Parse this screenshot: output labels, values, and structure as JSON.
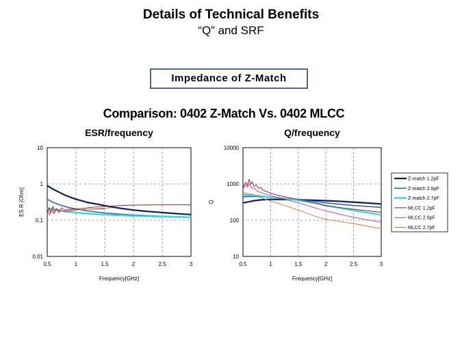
{
  "slide": {
    "title": "Details of Technical Benefits",
    "subtitle": "“Q” and SRF",
    "boxed_label": "Impedance  of Z-Match",
    "comparison": "Comparison: 0402 Z-Match Vs. 0402 MLCC"
  },
  "chart_data": [
    {
      "type": "line",
      "title": "ESR/frequency",
      "xlabel": "Frequency[GHz]",
      "ylabel": "ES R [Ohm]",
      "xscale": "linear",
      "yscale": "log",
      "xlim": [
        0.5,
        3
      ],
      "ylim": [
        0.01,
        10
      ],
      "xticks": [
        "0.5",
        "1",
        "1.5",
        "2",
        "2.5",
        "3"
      ],
      "yticks": [
        "10",
        "1",
        "0.1",
        "0.01"
      ],
      "grid": true,
      "series": [
        {
          "name": "Z-match 1.2pF",
          "color": "#0d1a5e",
          "width": 2.2,
          "x": [
            0.5,
            0.6,
            0.7,
            0.8,
            0.9,
            1.0,
            1.2,
            1.4,
            1.6,
            1.8,
            2.0,
            2.2,
            2.4,
            2.6,
            2.8,
            3.0
          ],
          "y": [
            0.9,
            0.72,
            0.6,
            0.5,
            0.43,
            0.38,
            0.31,
            0.27,
            0.235,
            0.21,
            0.19,
            0.177,
            0.167,
            0.158,
            0.15,
            0.143
          ]
        },
        {
          "name": "Z-match 2.0pF",
          "color": "#2e5fc8",
          "width": 1.6,
          "x": [
            0.5,
            0.6,
            0.7,
            0.8,
            0.9,
            1.0,
            1.2,
            1.5,
            1.8,
            2.0,
            2.5,
            3.0
          ],
          "y": [
            0.38,
            0.31,
            0.27,
            0.24,
            0.22,
            0.205,
            0.18,
            0.158,
            0.145,
            0.138,
            0.128,
            0.122
          ]
        },
        {
          "name": "Z-match 2.7pF",
          "color": "#33dcdc",
          "width": 2.4,
          "x": [
            0.5,
            0.6,
            0.7,
            0.8,
            0.9,
            1.0,
            1.2,
            1.5,
            1.8,
            2.0,
            2.5,
            3.0
          ],
          "y": [
            0.22,
            0.2,
            0.185,
            0.175,
            0.168,
            0.162,
            0.152,
            0.142,
            0.135,
            0.131,
            0.125,
            0.12
          ]
        },
        {
          "name": "MLCC 1.2pF",
          "color": "#a01010",
          "width": 0.9,
          "x": [
            0.5,
            0.53,
            0.56,
            0.6,
            0.63,
            0.66,
            0.7,
            0.75,
            0.8,
            0.85,
            0.9,
            1.0,
            1.1,
            1.2,
            1.4,
            1.6,
            1.8,
            2.0,
            2.5,
            3.0
          ],
          "y": [
            0.15,
            0.22,
            0.16,
            0.24,
            0.17,
            0.21,
            0.18,
            0.22,
            0.19,
            0.2,
            0.2,
            0.2,
            0.21,
            0.22,
            0.235,
            0.245,
            0.255,
            0.26,
            0.265,
            0.265
          ]
        },
        {
          "name": "MLCC 2.0pF",
          "color": "#c030c0",
          "width": 0.9,
          "x": [
            0.5,
            0.54,
            0.58,
            0.62,
            0.66,
            0.7,
            0.75,
            0.8,
            0.9,
            1.0,
            1.2,
            1.5
          ],
          "y": [
            0.2,
            0.14,
            0.21,
            0.15,
            0.2,
            0.16,
            0.19,
            0.17,
            0.18,
            0.19,
            0.2,
            0.205
          ]
        },
        {
          "name": "MLCC 2.7pF",
          "color": "#c87a20",
          "width": 0.9,
          "x": [
            0.5,
            0.55,
            0.6,
            0.65,
            0.7,
            0.8,
            0.9,
            1.0,
            1.2,
            1.4,
            1.6
          ],
          "y": [
            0.17,
            0.2,
            0.16,
            0.19,
            0.175,
            0.18,
            0.185,
            0.19,
            0.2,
            0.21,
            0.22
          ]
        }
      ]
    },
    {
      "type": "line",
      "title": "Q/frequency",
      "xlabel": "Frequency[GHz]",
      "ylabel": "Q",
      "xscale": "linear",
      "yscale": "log",
      "xlim": [
        0.5,
        3
      ],
      "ylim": [
        10,
        10000
      ],
      "xticks": [
        "0.5",
        "1",
        "1.5",
        "2",
        "2.5",
        "3"
      ],
      "yticks": [
        "10000",
        "1000",
        "100",
        "10"
      ],
      "grid": true,
      "legend": "right",
      "series": [
        {
          "name": "Z-match 1.2pF",
          "color": "#0d1a5e",
          "width": 2.2,
          "x": [
            0.5,
            0.6,
            0.7,
            0.8,
            0.9,
            1.0,
            1.2,
            1.5,
            1.8,
            2.0,
            2.2,
            2.5,
            2.8,
            3.0
          ],
          "y": [
            300,
            320,
            345,
            360,
            370,
            375,
            375,
            365,
            355,
            345,
            335,
            315,
            295,
            280
          ]
        },
        {
          "name": "Z-match 2.0pF",
          "color": "#2e5fc8",
          "width": 1.6,
          "x": [
            0.5,
            0.6,
            0.7,
            0.8,
            0.9,
            1.0,
            1.2,
            1.5,
            1.8,
            2.0,
            2.5,
            3.0
          ],
          "y": [
            440,
            450,
            450,
            445,
            440,
            430,
            410,
            370,
            330,
            300,
            255,
            225
          ]
        },
        {
          "name": "Z-match 2.7pF",
          "color": "#33dcdc",
          "width": 2.4,
          "x": [
            0.5,
            0.6,
            0.7,
            0.8,
            0.9,
            1.0,
            1.2,
            1.5,
            1.8,
            2.0,
            2.5,
            3.0
          ],
          "y": [
            500,
            490,
            480,
            465,
            450,
            435,
            405,
            350,
            295,
            255,
            185,
            140
          ]
        },
        {
          "name": "MLCC 1.2pF",
          "color": "#a01010",
          "width": 0.9,
          "x": [
            0.5,
            0.55,
            0.58,
            0.61,
            0.64,
            0.67,
            0.7,
            0.74,
            0.78,
            0.82,
            0.86,
            0.9,
            0.95,
            1.0,
            1.1,
            1.2,
            1.4,
            1.6,
            1.8,
            2.0,
            2.5,
            3.0
          ],
          "y": [
            800,
            1100,
            900,
            1350,
            1000,
            1150,
            850,
            950,
            750,
            800,
            680,
            640,
            600,
            560,
            500,
            460,
            400,
            350,
            300,
            250,
            200,
            165
          ]
        },
        {
          "name": "MLCC 2.0pF",
          "color": "#c030c0",
          "width": 0.9,
          "x": [
            0.5,
            0.54,
            0.58,
            0.62,
            0.66,
            0.7,
            0.75,
            0.8,
            0.9,
            1.0,
            1.2,
            1.5,
            1.8,
            2.0,
            2.5,
            3.0
          ],
          "y": [
            700,
            950,
            800,
            1000,
            750,
            780,
            650,
            600,
            530,
            480,
            400,
            300,
            220,
            180,
            120,
            88
          ]
        },
        {
          "name": "MLCC 2.7pF",
          "color": "#c87a20",
          "width": 0.9,
          "x": [
            0.5,
            0.55,
            0.6,
            0.65,
            0.7,
            0.8,
            0.9,
            1.0,
            1.2,
            1.5,
            1.8,
            2.0,
            2.5,
            3.0
          ],
          "y": [
            500,
            580,
            520,
            540,
            490,
            430,
            380,
            340,
            270,
            190,
            130,
            105,
            80,
            58
          ]
        }
      ]
    }
  ]
}
